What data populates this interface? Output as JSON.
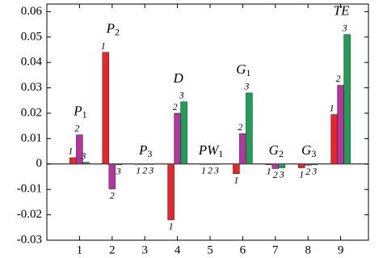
{
  "chart_data": {
    "type": "bar",
    "categories": [
      "1",
      "2",
      "3",
      "4",
      "5",
      "6",
      "7",
      "8",
      "9"
    ],
    "group_labels": [
      {
        "text": "P",
        "sub": "1"
      },
      {
        "text": "P",
        "sub": "2"
      },
      {
        "text": "P",
        "sub": "3"
      },
      {
        "text": "D"
      },
      {
        "text": "PW",
        "sub": "1"
      },
      {
        "text": "G",
        "sub": "1"
      },
      {
        "text": "G",
        "sub": "2"
      },
      {
        "text": "G",
        "sub": "3"
      },
      {
        "text": "TE"
      }
    ],
    "series": [
      {
        "name": "1",
        "color": "#e5262b",
        "values": [
          0.0025,
          0.044,
          0,
          -0.022,
          0,
          -0.0038,
          -0.0003,
          -0.0015,
          0.0195
        ]
      },
      {
        "name": "2",
        "color": "#b5359e",
        "values": [
          0.0115,
          -0.0098,
          0,
          0.02,
          0,
          0.012,
          -0.0018,
          -0.0005,
          0.031
        ]
      },
      {
        "name": "3",
        "color": "#1f9f55",
        "values": [
          0.0007,
          -0.0003,
          0,
          0.0245,
          0,
          0.028,
          -0.0015,
          -0.0003,
          0.051
        ]
      }
    ],
    "ylim": [
      -0.03,
      0.063
    ],
    "yticks": [
      -0.03,
      -0.02,
      -0.01,
      0,
      0.01,
      0.02,
      0.03,
      0.04,
      0.05,
      0.06
    ]
  }
}
